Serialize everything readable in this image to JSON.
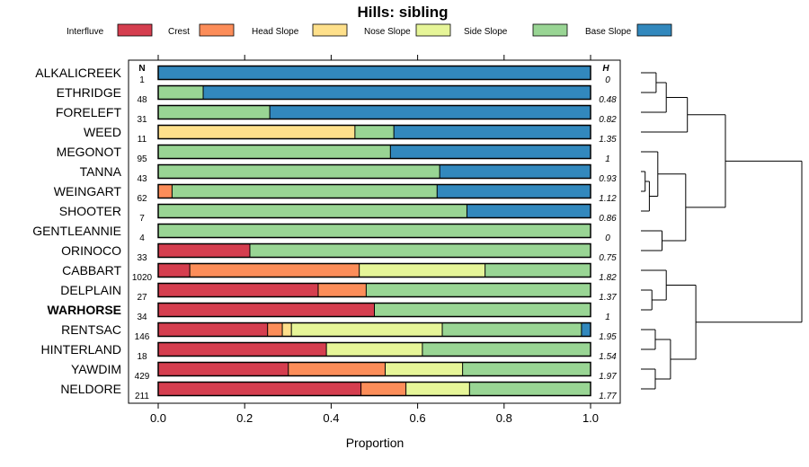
{
  "chart_data": {
    "type": "bar",
    "orientation": "horizontal-stacked",
    "title": "Hills: sibling",
    "xlabel": "Proportion",
    "ylabel": "",
    "xlim": [
      0,
      1
    ],
    "xticks": [
      "0.0",
      "0.2",
      "0.4",
      "0.6",
      "0.8",
      "1.0"
    ],
    "n_header": "N",
    "h_header": "H",
    "highlight": "WARHORSE",
    "legend": [
      {
        "name": "Interfluve",
        "color": "#D53E4F"
      },
      {
        "name": "Crest",
        "color": "#FC8D59"
      },
      {
        "name": "Head Slope",
        "color": "#FEE08B"
      },
      {
        "name": "Nose Slope",
        "color": "#E6F598"
      },
      {
        "name": "Side Slope",
        "color": "#99D594"
      },
      {
        "name": "Base Slope",
        "color": "#3288BD"
      }
    ],
    "series_order": [
      "Interfluve",
      "Crest",
      "Head Slope",
      "Nose Slope",
      "Side Slope",
      "Base Slope"
    ],
    "rows": [
      {
        "name": "ALKALICREEK",
        "n": "1",
        "h": "0",
        "values": [
          0,
          0,
          0,
          0,
          0,
          1.0
        ]
      },
      {
        "name": "ETHRIDGE",
        "n": "48",
        "h": "0.48",
        "values": [
          0,
          0,
          0,
          0,
          0.104,
          0.896
        ]
      },
      {
        "name": "FORELEFT",
        "n": "31",
        "h": "0.82",
        "values": [
          0,
          0,
          0,
          0,
          0.258,
          0.742
        ]
      },
      {
        "name": "WEED",
        "n": "11",
        "h": "1.35",
        "values": [
          0,
          0,
          0.455,
          0,
          0.09,
          0.455
        ]
      },
      {
        "name": "MEGONOT",
        "n": "95",
        "h": "1",
        "values": [
          0,
          0,
          0,
          0,
          0.537,
          0.463
        ]
      },
      {
        "name": "TANNA",
        "n": "43",
        "h": "0.93",
        "values": [
          0,
          0,
          0,
          0,
          0.651,
          0.349
        ]
      },
      {
        "name": "WEINGART",
        "n": "62",
        "h": "1.12",
        "values": [
          0,
          0.032,
          0,
          0,
          0.613,
          0.355
        ]
      },
      {
        "name": "SHOOTER",
        "n": "7",
        "h": "0.86",
        "values": [
          0,
          0,
          0,
          0,
          0.714,
          0.286
        ]
      },
      {
        "name": "GENTLEANNIE",
        "n": "4",
        "h": "0",
        "values": [
          0,
          0,
          0,
          0,
          1.0,
          0
        ]
      },
      {
        "name": "ORINOCO",
        "n": "33",
        "h": "0.75",
        "values": [
          0.212,
          0,
          0,
          0,
          0.788,
          0
        ]
      },
      {
        "name": "CABBART",
        "n": "1020",
        "h": "1.82",
        "values": [
          0.073,
          0.392,
          0,
          0.291,
          0.244,
          0
        ]
      },
      {
        "name": "DELPLAIN",
        "n": "27",
        "h": "1.37",
        "values": [
          0.37,
          0.111,
          0,
          0,
          0.519,
          0
        ]
      },
      {
        "name": "WARHORSE",
        "n": "34",
        "h": "1",
        "values": [
          0.5,
          0,
          0,
          0,
          0.5,
          0
        ]
      },
      {
        "name": "RENTSAC",
        "n": "146",
        "h": "1.95",
        "values": [
          0.253,
          0.034,
          0.021,
          0.349,
          0.322,
          0.021
        ]
      },
      {
        "name": "HINTERLAND",
        "n": "18",
        "h": "1.54",
        "values": [
          0.389,
          0,
          0,
          0.222,
          0.389,
          0
        ]
      },
      {
        "name": "YAWDIM",
        "n": "429",
        "h": "1.97",
        "values": [
          0.301,
          0.224,
          0,
          0.179,
          0.296,
          0
        ]
      },
      {
        "name": "NELDORE",
        "n": "211",
        "h": "1.77",
        "values": [
          0.469,
          0.104,
          0,
          0.147,
          0.28,
          0
        ]
      }
    ],
    "dendrogram": {
      "merges": [
        {
          "a": 0,
          "b": 1,
          "height": 0.18
        },
        {
          "a": "m0",
          "b": 2,
          "height": 0.3
        },
        {
          "a": "m1",
          "b": 3,
          "height": 0.55
        },
        {
          "a": 5,
          "b": 6,
          "height": 0.05
        },
        {
          "a": "m3",
          "b": 7,
          "height": 0.1
        },
        {
          "a": 4,
          "b": "m4",
          "height": 0.2
        },
        {
          "a": 8,
          "b": 9,
          "height": 0.25
        },
        {
          "a": "m5",
          "b": "m6",
          "height": 0.53
        },
        {
          "a": "m2",
          "b": "m7",
          "height": 1.0
        },
        {
          "a": 13,
          "b": 14,
          "height": 0.17
        },
        {
          "a": 15,
          "b": 16,
          "height": 0.17
        },
        {
          "a": "m9",
          "b": "m10",
          "height": 0.35
        },
        {
          "a": 11,
          "b": 12,
          "height": 0.13
        },
        {
          "a": 10,
          "b": "m12",
          "height": 0.3
        },
        {
          "a": "m13",
          "b": "m11",
          "height": 0.65
        }
      ],
      "root": {
        "a": "m8",
        "b": "m14",
        "height": 1.0
      }
    }
  }
}
